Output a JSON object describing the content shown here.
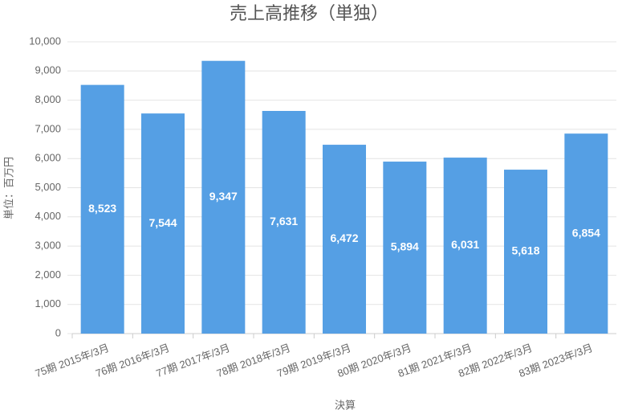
{
  "chart_data": {
    "type": "bar",
    "title": "売上高推移（単独）",
    "y_label": "単位：百万円",
    "x_label": "決算",
    "categories": [
      "75期 2015年/3月",
      "76期 2016年/3月",
      "77期 2017年/3月",
      "78期 2018年/3月",
      "79期 2019年/3月",
      "80期 2020年/3月",
      "81期 2021年/3月",
      "82期 2022年/3月",
      "83期 2023年/3月"
    ],
    "values": [
      8523,
      7544,
      9347,
      7631,
      6472,
      5894,
      6031,
      5618,
      6854
    ],
    "value_labels": [
      "8,523",
      "7,544",
      "9,347",
      "7,631",
      "6,472",
      "5,894",
      "6,031",
      "5,618",
      "6,854"
    ],
    "color": "#559fe4",
    "ylim": [
      0,
      10000
    ],
    "yticks": [
      0,
      {
        "value": 1000,
        "label": "1,000"
      },
      {
        "value": 2000,
        "label": "2,000"
      },
      {
        "value": 3000,
        "label": "3,000"
      },
      {
        "value": 4000,
        "label": "4,000"
      },
      {
        "value": 5000,
        "label": "5,000"
      },
      {
        "value": 6000,
        "label": "6,000"
      },
      {
        "value": 7000,
        "label": "7,000"
      },
      {
        "value": 8000,
        "label": "8,000"
      },
      {
        "value": 9000,
        "label": "9,000"
      },
      {
        "value": 10000,
        "label": "10,000"
      }
    ],
    "grid": true
  }
}
